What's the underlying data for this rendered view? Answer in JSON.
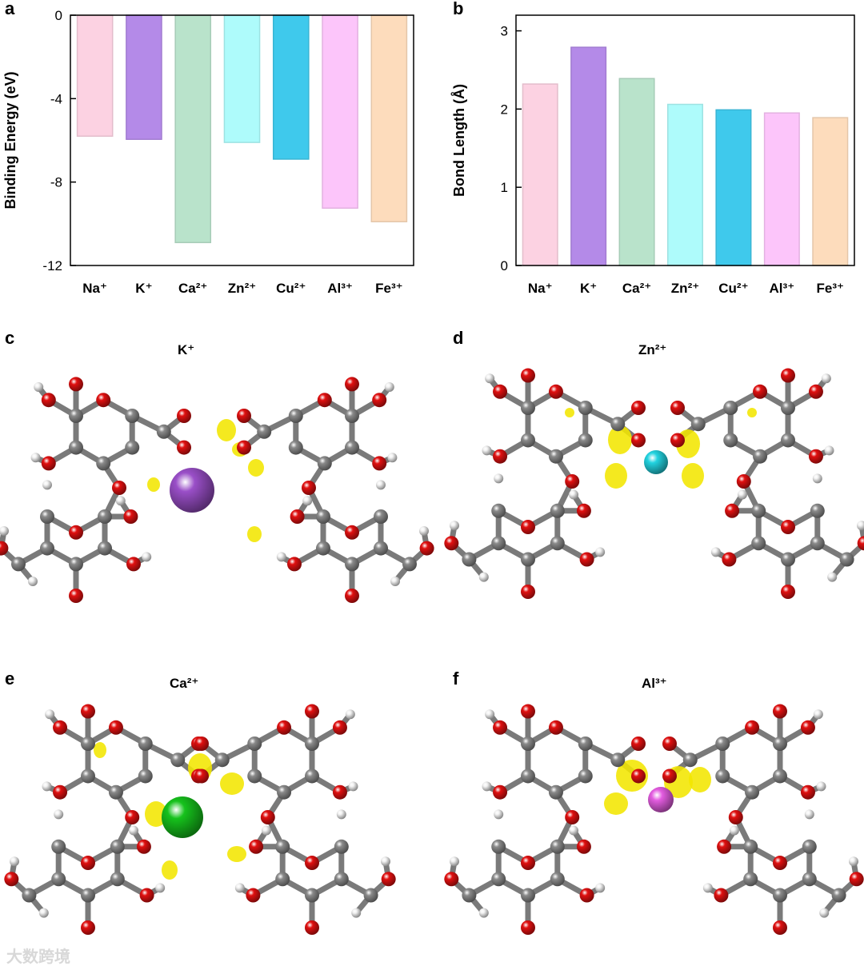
{
  "panels": {
    "a": {
      "letter": "a"
    },
    "b": {
      "letter": "b"
    },
    "c": {
      "letter": "c",
      "title": "K⁺"
    },
    "d": {
      "letter": "d",
      "title": "Zn²⁺"
    },
    "e": {
      "letter": "e",
      "title": "Ca²⁺"
    },
    "f": {
      "letter": "f",
      "title": "Al³⁺"
    }
  },
  "chart_data": [
    {
      "type": "bar",
      "panel": "a",
      "categories": [
        "Na⁺",
        "K⁺",
        "Ca²⁺",
        "Zn²⁺",
        "Cu²⁺",
        "Al³⁺",
        "Fe³⁺"
      ],
      "values": [
        -5.8,
        -5.95,
        -10.9,
        -6.1,
        -6.9,
        -9.25,
        -9.9
      ],
      "ylabel": "Binding Energy (eV)",
      "xlabel": "",
      "ylim": [
        -12,
        0
      ],
      "yticks": [
        0,
        -4,
        -8,
        -12
      ],
      "colors": [
        "#fcd2e2",
        "#b48ae8",
        "#b9e3cb",
        "#aefbfb",
        "#3fc9ec",
        "#fcc5fa",
        "#fddcbc"
      ],
      "grid": false
    },
    {
      "type": "bar",
      "panel": "b",
      "categories": [
        "Na⁺",
        "K⁺",
        "Ca²⁺",
        "Zn²⁺",
        "Cu²⁺",
        "Al³⁺",
        "Fe³⁺"
      ],
      "values": [
        2.32,
        2.79,
        2.39,
        2.06,
        1.99,
        1.95,
        1.89
      ],
      "ylabel": "Bond Length (Å)",
      "xlabel": "",
      "ylim": [
        0,
        3.2
      ],
      "yticks": [
        0,
        1,
        2,
        3
      ],
      "colors": [
        "#fcd2e2",
        "#b48ae8",
        "#b9e3cb",
        "#aefbfb",
        "#3fc9ec",
        "#fcc5fa",
        "#fddcbc"
      ],
      "grid": false
    }
  ],
  "molecules": {
    "c": {
      "ion": "K⁺",
      "ion_color": "#9a4fc8",
      "image_type": "ball-and-stick structure"
    },
    "d": {
      "ion": "Zn²⁺",
      "ion_color": "#22d3e0",
      "image_type": "ball-and-stick structure"
    },
    "e": {
      "ion": "Ca²⁺",
      "ion_color": "#16c21c",
      "image_type": "ball-and-stick structure"
    },
    "f": {
      "ion": "Al³⁺",
      "ion_color": "#e35ce0",
      "image_type": "ball-and-stick structure"
    }
  },
  "colors": {
    "carbon": "#8a8a8a",
    "oxygen": "#e01010",
    "hydrogen": "#f2f2f2",
    "density": "#f2e600"
  },
  "watermark": "大数跨境"
}
